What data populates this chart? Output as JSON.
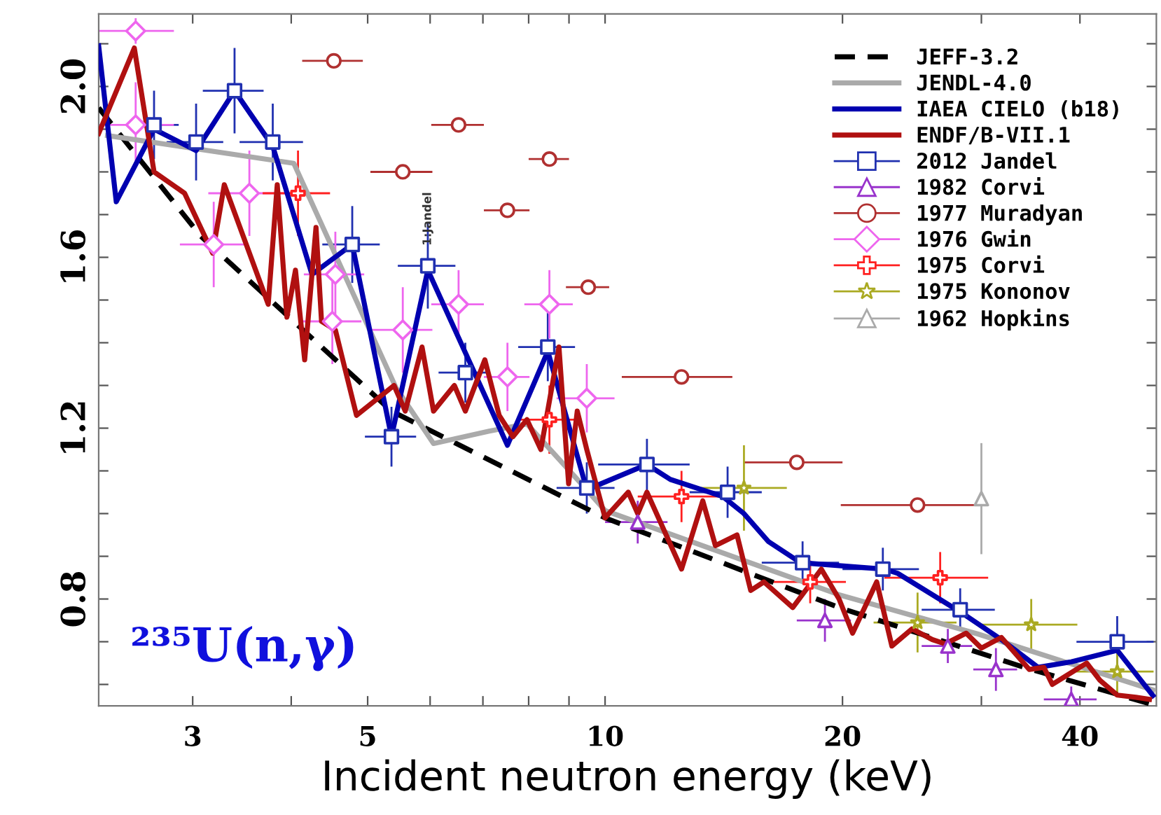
{
  "chart_data": {
    "type": "line",
    "xlabel": "Incident neutron energy (keV)",
    "log": "x",
    "xlim": [
      2.28,
      50
    ],
    "xticks": [
      3,
      {
        "value": 4,
        "label": null
      },
      5,
      {
        "value": 6,
        "label": null
      },
      {
        "value": 7,
        "label": null
      },
      {
        "value": 8,
        "label": null
      },
      {
        "value": 9,
        "label": null
      },
      10,
      20,
      {
        "value": 30,
        "label": null
      },
      40
    ],
    "ylim": [
      0.55,
      2.17
    ],
    "yticks": [
      {
        "value": 0.6,
        "label": null
      },
      {
        "value": 0.7,
        "label": null
      },
      {
        "value": 0.8,
        "label": "0.8"
      },
      {
        "value": 0.9,
        "label": null
      },
      {
        "value": 1.0,
        "label": null
      },
      {
        "value": 1.1,
        "label": null
      },
      {
        "value": 1.2,
        "label": "1.2"
      },
      {
        "value": 1.3,
        "label": null
      },
      {
        "value": 1.4,
        "label": null
      },
      {
        "value": 1.5,
        "label": null
      },
      {
        "value": 1.6,
        "label": "1.6"
      },
      {
        "value": 1.7,
        "label": null
      },
      {
        "value": 1.8,
        "label": null
      },
      {
        "value": 1.9,
        "label": null
      },
      {
        "value": 2.0,
        "label": "2.0"
      },
      {
        "value": 2.1,
        "label": null
      }
    ],
    "grid": false,
    "legend": "top right",
    "annotations": [
      {
        "text": "1:Jandel",
        "x": 5.96,
        "y": 1.6
      },
      "²³⁵U(n,γ)"
    ],
    "series": [
      {
        "name": "JEFF-3.2",
        "color": "#000000",
        "line_style": "dashed",
        "x": [
          2.28,
          3.07,
          5.36,
          10,
          19.8,
          34,
          49
        ],
        "values": [
          1.95,
          1.65,
          1.24,
          0.99,
          0.78,
          0.64,
          0.555
        ]
      },
      {
        "name": "JENDL-4.0",
        "color": "#aaaaaa",
        "line_style": "solid",
        "x": [
          2.34,
          4.03,
          5.43,
          6.06,
          7.13,
          7.96,
          9.37,
          10,
          19.8,
          29.7,
          49.5
        ],
        "values": [
          1.885,
          1.82,
          1.295,
          1.164,
          1.193,
          1.21,
          1.066,
          1.007,
          0.81,
          0.718,
          0.587
        ]
      },
      {
        "name": "IAEA CIELO (b18)",
        "color": "#0000b0",
        "line_style": "solid",
        "x": [
          2.28,
          2.4,
          2.68,
          3.03,
          3.39,
          3.79,
          4.25,
          4.78,
          5.36,
          5.96,
          7.52,
          8.46,
          9.48,
          11.3,
          12.1,
          14.1,
          15.0,
          16.1,
          17.7,
          22.6,
          23.5,
          28.2,
          31.8,
          35.4,
          39.0,
          44.6,
          49.5
        ],
        "values": [
          2.095,
          1.73,
          1.9,
          1.85,
          1.99,
          1.86,
          1.56,
          1.63,
          1.18,
          1.57,
          1.16,
          1.38,
          1.056,
          1.115,
          1.08,
          1.04,
          1.0,
          0.935,
          0.885,
          0.87,
          0.86,
          0.77,
          0.705,
          0.64,
          0.653,
          0.68,
          0.574
        ]
      },
      {
        "name": "ENDF/B-VII.1",
        "color": "#b01010",
        "line_style": "solid",
        "x": [
          2.28,
          2.53,
          2.68,
          2.93,
          3.18,
          3.29,
          3.74,
          3.84,
          3.95,
          4.05,
          4.16,
          4.3,
          4.37,
          4.55,
          4.84,
          5.4,
          5.58,
          5.86,
          6.06,
          6.44,
          6.65,
          7.04,
          7.34,
          7.64,
          7.96,
          8.29,
          8.74,
          8.99,
          9.22,
          9.48,
          10,
          10.7,
          11.0,
          11.3,
          12.5,
          13.3,
          13.8,
          14.7,
          15.3,
          15.9,
          17.3,
          18.8,
          19.8,
          20.6,
          22.1,
          23.1,
          24.5,
          26.0,
          27.0,
          28.7,
          30.0,
          31.8,
          34.5,
          36.0,
          36.9,
          38.4,
          40.8,
          42.4,
          44.6,
          47.1,
          49.0
        ],
        "values": [
          1.89,
          2.09,
          1.8,
          1.75,
          1.61,
          1.77,
          1.49,
          1.77,
          1.46,
          1.57,
          1.36,
          1.67,
          1.45,
          1.43,
          1.23,
          1.3,
          1.24,
          1.39,
          1.24,
          1.3,
          1.24,
          1.36,
          1.23,
          1.18,
          1.22,
          1.15,
          1.39,
          1.07,
          1.24,
          1.15,
          0.99,
          1.05,
          1.0,
          1.05,
          0.87,
          1.03,
          0.925,
          0.95,
          0.82,
          0.84,
          0.78,
          0.87,
          0.8,
          0.72,
          0.84,
          0.69,
          0.73,
          0.705,
          0.695,
          0.72,
          0.685,
          0.71,
          0.635,
          0.64,
          0.6,
          0.62,
          0.65,
          0.61,
          0.575,
          0.57,
          0.565
        ]
      },
      {
        "name": "2012 Jandel",
        "type": "scatter",
        "marker": "square",
        "color": "#2030b0",
        "x": [
          2.68,
          3.03,
          3.39,
          3.79,
          4.78,
          5.36,
          5.96,
          6.65,
          8.46,
          9.48,
          11.3,
          14.3,
          17.8,
          22.5,
          28.2,
          44.6
        ],
        "values": [
          1.91,
          1.87,
          1.99,
          1.87,
          1.63,
          1.18,
          1.58,
          1.33,
          1.39,
          1.06,
          1.115,
          1.05,
          0.885,
          0.87,
          0.775,
          0.7
        ],
        "errors": [
          0.08,
          0.09,
          0.1,
          0.09,
          0.09,
          0.07,
          0.1,
          0.07,
          0.08,
          0.06,
          0.06,
          0.06,
          0.05,
          0.05,
          0.05,
          0.06
        ],
        "xerrors": [
          0.2,
          0.25,
          0.3,
          0.35,
          0.4,
          0.4,
          0.5,
          0.5,
          0.7,
          0.8,
          1.5,
          1.5,
          2,
          2.5,
          3,
          5
        ]
      },
      {
        "name": "1982 Corvi",
        "type": "scatter",
        "marker": "triangle",
        "color": "#9933cc",
        "x": [
          11.0,
          19.0,
          27.2,
          31.3,
          39.0
        ],
        "values": [
          0.98,
          0.75,
          0.69,
          0.635,
          0.565
        ],
        "errors": [
          0.05,
          0.05,
          0.04,
          0.05,
          0.03
        ],
        "xerrors": [
          1,
          1.5,
          2,
          2,
          3
        ]
      },
      {
        "name": "1977 Muradyan",
        "type": "scatter",
        "marker": "circle",
        "color": "#b03030",
        "x": [
          4.53,
          5.54,
          6.52,
          7.52,
          8.5,
          9.52,
          12.5,
          17.5,
          24.9
        ],
        "values": [
          2.06,
          1.8,
          1.91,
          1.71,
          1.83,
          1.53,
          1.32,
          1.12,
          1.02
        ],
        "xerrors": [
          0.4,
          0.5,
          0.5,
          0.5,
          0.5,
          0.6,
          2,
          2.5,
          5
        ]
      },
      {
        "name": "1976 Gwin",
        "type": "scatter",
        "marker": "diamond",
        "color": "#ee66ee",
        "x": [
          2.54,
          2.54,
          3.19,
          3.54,
          4.51,
          4.55,
          5.54,
          6.52,
          7.52,
          8.5,
          9.48
        ],
        "values": [
          2.13,
          1.91,
          1.63,
          1.75,
          1.45,
          1.56,
          1.43,
          1.49,
          1.32,
          1.49,
          1.27
        ],
        "errors": [
          0.03,
          0.1,
          0.1,
          0.1,
          0.1,
          0.1,
          0.1,
          0.08,
          0.08,
          0.08,
          0.08
        ],
        "xerrors": [
          0.3,
          0.3,
          0.3,
          0.4,
          0.4,
          0.4,
          0.5,
          0.5,
          0.5,
          0.6,
          0.8
        ]
      },
      {
        "name": "1975 Corvi",
        "type": "scatter",
        "marker": "cross",
        "color": "#ff2020",
        "x": [
          4.08,
          8.5,
          12.5,
          18.2,
          26.6
        ],
        "values": [
          1.75,
          1.22,
          1.04,
          0.84,
          0.85
        ],
        "errors": [
          0.1,
          0.08,
          0.06,
          0.05,
          0.06
        ],
        "xerrors": [
          0.4,
          0.7,
          1.5,
          2,
          4
        ]
      },
      {
        "name": "1975 Kononov",
        "type": "scatter",
        "marker": "star",
        "color": "#aaaa22",
        "x": [
          15.0,
          24.9,
          34.7,
          44.6
        ],
        "values": [
          1.06,
          0.745,
          0.74,
          0.63
        ],
        "errors": [
          0.1,
          0.07,
          0.06,
          0.05
        ],
        "xerrors": [
          2,
          3,
          5,
          5
        ]
      },
      {
        "name": "1962 Hopkins",
        "type": "scatter",
        "marker": "triangle",
        "color": "#aaaaaa",
        "x": [
          30.0
        ],
        "values": [
          1.035
        ],
        "errors": [
          0.13
        ]
      }
    ]
  }
}
